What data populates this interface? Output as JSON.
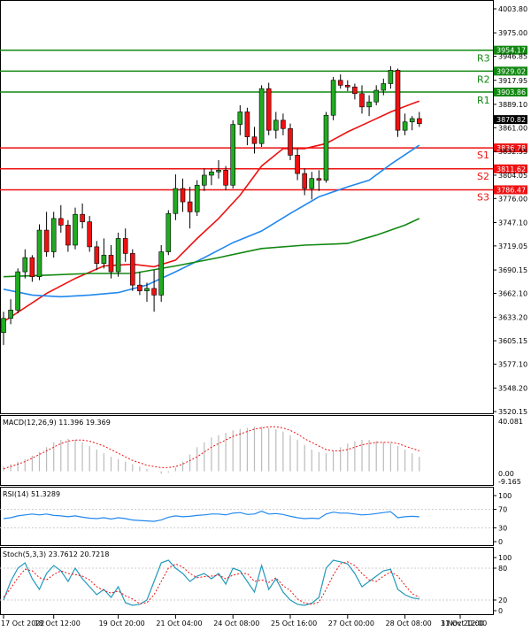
{
  "chart_data": {
    "type": "candlestick",
    "instrument_timeframe": "H4",
    "price_axis": {
      "min": 3520.15,
      "max": 4003.8,
      "ticks": [
        4003.8,
        3975.0,
        3946.85,
        3917.95,
        3889.1,
        3861.0,
        3832.55,
        3804.05,
        3776.0,
        3747.1,
        3719.05,
        3690.15,
        3662.1,
        3633.2,
        3605.15,
        3577.1,
        3548.2,
        3520.15
      ],
      "tick_labels": [
        "4003.80",
        "3975.00",
        "3946.85",
        "3917.95",
        "3889.10",
        "3861.00",
        "3832.55",
        "3804.05",
        "3776.00",
        "3747.10",
        "3719.05",
        "3690.15",
        "3662.10",
        "3633.20",
        "3605.15",
        "3577.10",
        "3548.20",
        "3520.15"
      ]
    },
    "x_axis": {
      "labels": [
        "17 Oct 2022",
        "18 Oct 12:00",
        "19 Oct 20:00",
        "21 Oct 04:00",
        "24 Oct 08:00",
        "25 Oct 16:00",
        "27 Oct 00:00",
        "28 Oct 08:00",
        "31 Oct 12:00",
        "1 Nov 20:00"
      ],
      "label_bar_index": [
        0,
        7,
        16,
        24,
        32,
        40,
        48,
        56,
        64,
        71
      ]
    },
    "levels": [
      {
        "name": "R3",
        "value": 3954.17,
        "label": "3954.17",
        "kind": "resistance"
      },
      {
        "name": "R2",
        "value": 3929.02,
        "label": "3929.02",
        "kind": "resistance"
      },
      {
        "name": "R1",
        "value": 3903.86,
        "label": "3903.86",
        "kind": "resistance"
      },
      {
        "name": "S1",
        "value": 3836.78,
        "label": "3836.78",
        "kind": "support"
      },
      {
        "name": "S2",
        "value": 3811.62,
        "label": "3811.62",
        "kind": "support"
      },
      {
        "name": "S3",
        "value": 3786.47,
        "label": "3786.47",
        "kind": "support"
      }
    ],
    "current_price": {
      "value": 3870.82,
      "label": "3870.82"
    },
    "candles": [
      [
        3615,
        3640,
        3600,
        3632
      ],
      [
        3632,
        3655,
        3625,
        3642
      ],
      [
        3642,
        3692,
        3638,
        3688
      ],
      [
        3688,
        3715,
        3680,
        3705
      ],
      [
        3705,
        3708,
        3676,
        3682
      ],
      [
        3682,
        3745,
        3678,
        3738
      ],
      [
        3738,
        3760,
        3706,
        3712
      ],
      [
        3712,
        3760,
        3705,
        3752
      ],
      [
        3752,
        3768,
        3735,
        3744
      ],
      [
        3744,
        3750,
        3712,
        3720
      ],
      [
        3720,
        3765,
        3715,
        3757
      ],
      [
        3757,
        3770,
        3740,
        3748
      ],
      [
        3748,
        3755,
        3712,
        3718
      ],
      [
        3718,
        3725,
        3690,
        3698
      ],
      [
        3698,
        3728,
        3692,
        3708
      ],
      [
        3708,
        3720,
        3680,
        3688
      ],
      [
        3688,
        3735,
        3682,
        3728
      ],
      [
        3728,
        3740,
        3700,
        3710
      ],
      [
        3710,
        3715,
        3665,
        3672
      ],
      [
        3672,
        3688,
        3660,
        3665
      ],
      [
        3665,
        3675,
        3652,
        3668
      ],
      [
        3668,
        3690,
        3640,
        3660
      ],
      [
        3660,
        3720,
        3652,
        3712
      ],
      [
        3712,
        3762,
        3708,
        3758
      ],
      [
        3758,
        3805,
        3750,
        3788
      ],
      [
        3788,
        3800,
        3760,
        3772
      ],
      [
        3772,
        3790,
        3740,
        3760
      ],
      [
        3760,
        3798,
        3755,
        3792
      ],
      [
        3792,
        3812,
        3785,
        3804
      ],
      [
        3804,
        3812,
        3792,
        3808
      ],
      [
        3808,
        3822,
        3800,
        3810
      ],
      [
        3810,
        3815,
        3786,
        3792
      ],
      [
        3792,
        3870,
        3788,
        3865
      ],
      [
        3865,
        3888,
        3852,
        3880
      ],
      [
        3880,
        3885,
        3840,
        3850
      ],
      [
        3850,
        3862,
        3830,
        3842
      ],
      [
        3842,
        3912,
        3838,
        3908
      ],
      [
        3908,
        3915,
        3852,
        3858
      ],
      [
        3858,
        3880,
        3848,
        3870
      ],
      [
        3870,
        3878,
        3852,
        3860
      ],
      [
        3860,
        3866,
        3822,
        3828
      ],
      [
        3828,
        3836,
        3798,
        3806
      ],
      [
        3806,
        3812,
        3780,
        3788
      ],
      [
        3788,
        3808,
        3775,
        3800
      ],
      [
        3800,
        3810,
        3785,
        3798
      ],
      [
        3798,
        3880,
        3795,
        3876
      ],
      [
        3876,
        3922,
        3870,
        3918
      ],
      [
        3918,
        3925,
        3908,
        3912
      ],
      [
        3912,
        3918,
        3905,
        3910
      ],
      [
        3910,
        3914,
        3895,
        3902
      ],
      [
        3902,
        3912,
        3878,
        3886
      ],
      [
        3886,
        3900,
        3875,
        3892
      ],
      [
        3892,
        3912,
        3888,
        3906
      ],
      [
        3906,
        3920,
        3900,
        3914
      ],
      [
        3914,
        3935,
        3908,
        3930
      ],
      [
        3930,
        3932,
        3850,
        3858
      ],
      [
        3858,
        3878,
        3852,
        3868
      ],
      [
        3868,
        3875,
        3858,
        3872
      ],
      [
        3872,
        3880,
        3862,
        3866
      ]
    ],
    "moving_averages": [
      {
        "name": "MA fast",
        "color": "#ee1111",
        "points": [
          [
            0,
            3628
          ],
          [
            6,
            3662
          ],
          [
            10,
            3680
          ],
          [
            14,
            3695
          ],
          [
            18,
            3697
          ],
          [
            21,
            3694
          ],
          [
            24,
            3702
          ],
          [
            27,
            3728
          ],
          [
            30,
            3752
          ],
          [
            33,
            3780
          ],
          [
            36,
            3815
          ],
          [
            39,
            3836
          ],
          [
            42,
            3836
          ],
          [
            45,
            3842
          ],
          [
            48,
            3856
          ],
          [
            51,
            3868
          ],
          [
            54,
            3880
          ],
          [
            57,
            3890
          ],
          [
            58,
            3893
          ]
        ]
      },
      {
        "name": "MA medium",
        "color": "#2288ee",
        "points": [
          [
            0,
            3667
          ],
          [
            4,
            3660
          ],
          [
            8,
            3658
          ],
          [
            12,
            3660
          ],
          [
            16,
            3663
          ],
          [
            20,
            3672
          ],
          [
            24,
            3688
          ],
          [
            28,
            3705
          ],
          [
            32,
            3723
          ],
          [
            36,
            3737
          ],
          [
            40,
            3758
          ],
          [
            44,
            3778
          ],
          [
            48,
            3790
          ],
          [
            51,
            3798
          ],
          [
            54,
            3817
          ],
          [
            58,
            3840
          ]
        ]
      },
      {
        "name": "MA slow",
        "color": "#118811",
        "points": [
          [
            0,
            3682
          ],
          [
            6,
            3684
          ],
          [
            12,
            3686
          ],
          [
            18,
            3686
          ],
          [
            24,
            3695
          ],
          [
            30,
            3705
          ],
          [
            36,
            3716
          ],
          [
            42,
            3720
          ],
          [
            48,
            3722
          ],
          [
            52,
            3732
          ],
          [
            56,
            3744
          ],
          [
            58,
            3752
          ]
        ]
      }
    ],
    "indicators": [
      {
        "name": "MACD",
        "label": "MACD(12,26,9) 11.396 19.369",
        "axis_max": "40.081",
        "axis_zero": "0.00",
        "axis_min": "-9.165",
        "range": [
          -9.165,
          40.081
        ],
        "histogram": [
          4,
          6,
          8,
          10,
          13,
          16,
          20,
          24,
          26,
          27,
          26,
          24,
          21,
          18,
          15,
          12,
          10,
          8,
          6,
          4,
          2,
          0,
          -2,
          -1,
          3,
          8,
          14,
          20,
          24,
          28,
          30,
          32,
          34,
          35,
          36,
          37,
          37,
          36,
          35,
          33,
          30,
          26,
          22,
          18,
          16,
          15,
          17,
          20,
          23,
          25,
          26,
          26,
          25,
          24,
          23,
          21,
          18,
          15,
          12
        ],
        "signal": [
          2,
          4,
          6,
          8,
          11,
          14,
          17,
          20,
          23,
          25,
          26,
          26,
          25,
          23,
          21,
          18,
          15,
          12,
          9,
          7,
          5,
          4,
          3,
          3,
          4,
          6,
          9,
          12,
          16,
          20,
          23,
          26,
          29,
          31,
          33,
          35,
          36,
          37,
          37,
          36,
          34,
          31,
          27,
          24,
          21,
          18,
          17,
          17,
          18,
          20,
          22,
          23,
          24,
          24,
          24,
          23,
          21,
          19,
          17
        ]
      },
      {
        "name": "RSI",
        "label": "RSI(14) 51.3289",
        "ticks": [
          100,
          70,
          30,
          0
        ],
        "tick_labels": [
          "100",
          "70",
          "30",
          "0"
        ],
        "values": [
          50,
          52,
          56,
          58,
          60,
          58,
          60,
          57,
          56,
          54,
          56,
          53,
          51,
          50,
          52,
          49,
          52,
          50,
          47,
          46,
          45,
          44,
          47,
          53,
          56,
          54,
          55,
          57,
          58,
          60,
          60,
          58,
          62,
          63,
          59,
          60,
          66,
          60,
          61,
          59,
          55,
          52,
          50,
          51,
          50,
          60,
          64,
          62,
          62,
          60,
          58,
          59,
          61,
          63,
          65,
          52,
          54,
          55,
          54
        ]
      },
      {
        "name": "Stochastic",
        "label": "Stoch(5,3,3) 23.7612 20.7218",
        "ticks": [
          100,
          80,
          20,
          0
        ],
        "tick_labels": [
          "100",
          "80",
          "20",
          "0"
        ],
        "k": [
          20,
          55,
          80,
          90,
          60,
          40,
          70,
          85,
          75,
          55,
          80,
          60,
          45,
          30,
          40,
          25,
          45,
          15,
          10,
          12,
          20,
          55,
          90,
          95,
          80,
          70,
          55,
          65,
          70,
          60,
          70,
          50,
          80,
          75,
          55,
          35,
          85,
          40,
          60,
          35,
          20,
          12,
          10,
          14,
          25,
          80,
          95,
          92,
          88,
          70,
          45,
          55,
          65,
          75,
          78,
          40,
          30,
          24,
          22
        ],
        "d": [
          25,
          42,
          62,
          78,
          75,
          62,
          58,
          68,
          75,
          70,
          68,
          65,
          58,
          45,
          38,
          33,
          37,
          28,
          22,
          13,
          15,
          30,
          55,
          80,
          88,
          82,
          70,
          62,
          64,
          65,
          67,
          60,
          67,
          70,
          70,
          55,
          58,
          53,
          62,
          47,
          38,
          22,
          14,
          12,
          16,
          40,
          67,
          88,
          92,
          85,
          70,
          58,
          55,
          65,
          73,
          65,
          48,
          32,
          25
        ]
      }
    ]
  }
}
